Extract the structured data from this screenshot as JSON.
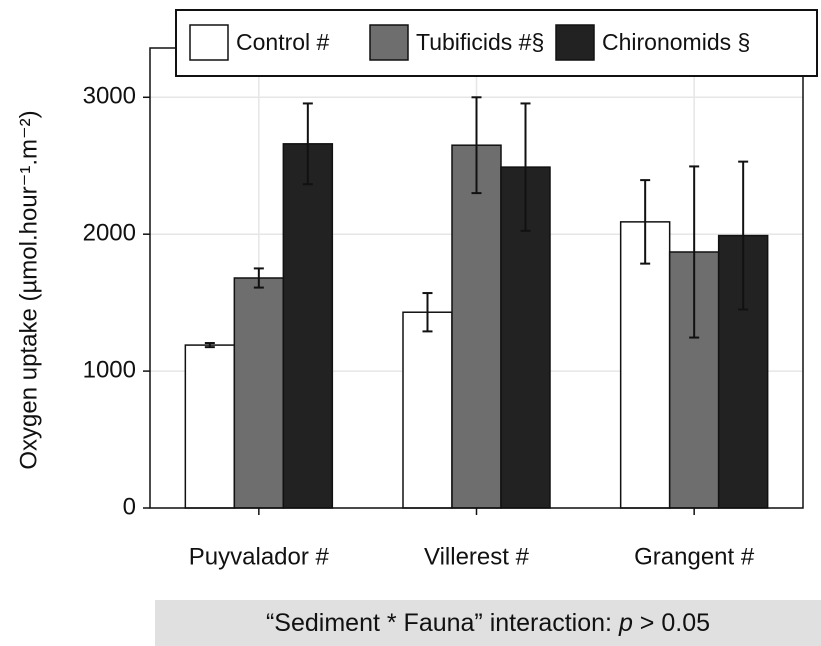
{
  "chart_data": {
    "type": "bar",
    "y_label": "Oxygen uptake (µmol.hour⁻¹.m⁻²)",
    "categories": [
      "Puyvalador #",
      "Villerest #",
      "Grangent #"
    ],
    "series": [
      {
        "name": "Control #",
        "color": "#ffffff",
        "values": [
          1190,
          1430,
          2090
        ],
        "errors": [
          15,
          140,
          305
        ]
      },
      {
        "name": "Tubificids #§",
        "color": "#6e6e6e",
        "values": [
          1680,
          2650,
          1870
        ],
        "errors": [
          70,
          350,
          625
        ]
      },
      {
        "name": "Chironomids §",
        "color": "#222222",
        "values": [
          2660,
          2490,
          1990
        ],
        "errors": [
          295,
          465,
          540
        ]
      }
    ],
    "ylim": [
      0,
      3360
    ],
    "yticks": [
      0,
      1000,
      2000,
      3000
    ],
    "grid": true,
    "legend": "top",
    "annotation": [
      "“Sediment * Fauna” interaction: ",
      "p",
      " > 0.05"
    ]
  }
}
